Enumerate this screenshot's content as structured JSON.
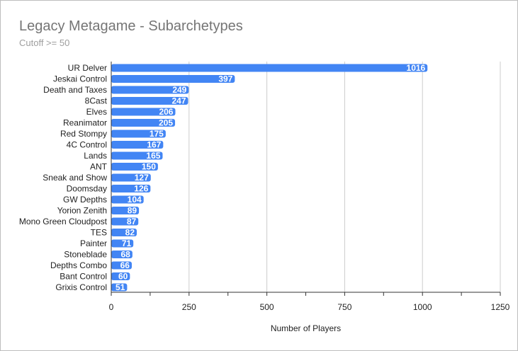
{
  "chart_data": {
    "type": "bar",
    "orientation": "horizontal",
    "title": "Legacy Metagame - Subarchetypes",
    "subtitle": "Cutoff >= 50",
    "xlabel": "Number of Players",
    "ylabel": "",
    "xlim": [
      0,
      1250
    ],
    "xticks": [
      0,
      250,
      500,
      750,
      1000,
      1250
    ],
    "grid": true,
    "legend": "none",
    "bar_color": "#4285f4",
    "categories": [
      "UR Delver",
      "Jeskai Control",
      "Death and Taxes",
      "8Cast",
      "Elves",
      "Reanimator",
      "Red Stompy",
      "4C Control",
      "Lands",
      "ANT",
      "Sneak and Show",
      "Doomsday",
      "GW Depths",
      "Yorion Zenith",
      "Mono Green Cloudpost",
      "TES",
      "Painter",
      "Stoneblade",
      "Depths Combo",
      "Bant Control",
      "Grixis Control"
    ],
    "values": [
      1016,
      397,
      249,
      247,
      206,
      205,
      175,
      167,
      165,
      150,
      127,
      126,
      104,
      89,
      87,
      82,
      71,
      68,
      66,
      60,
      51
    ]
  }
}
